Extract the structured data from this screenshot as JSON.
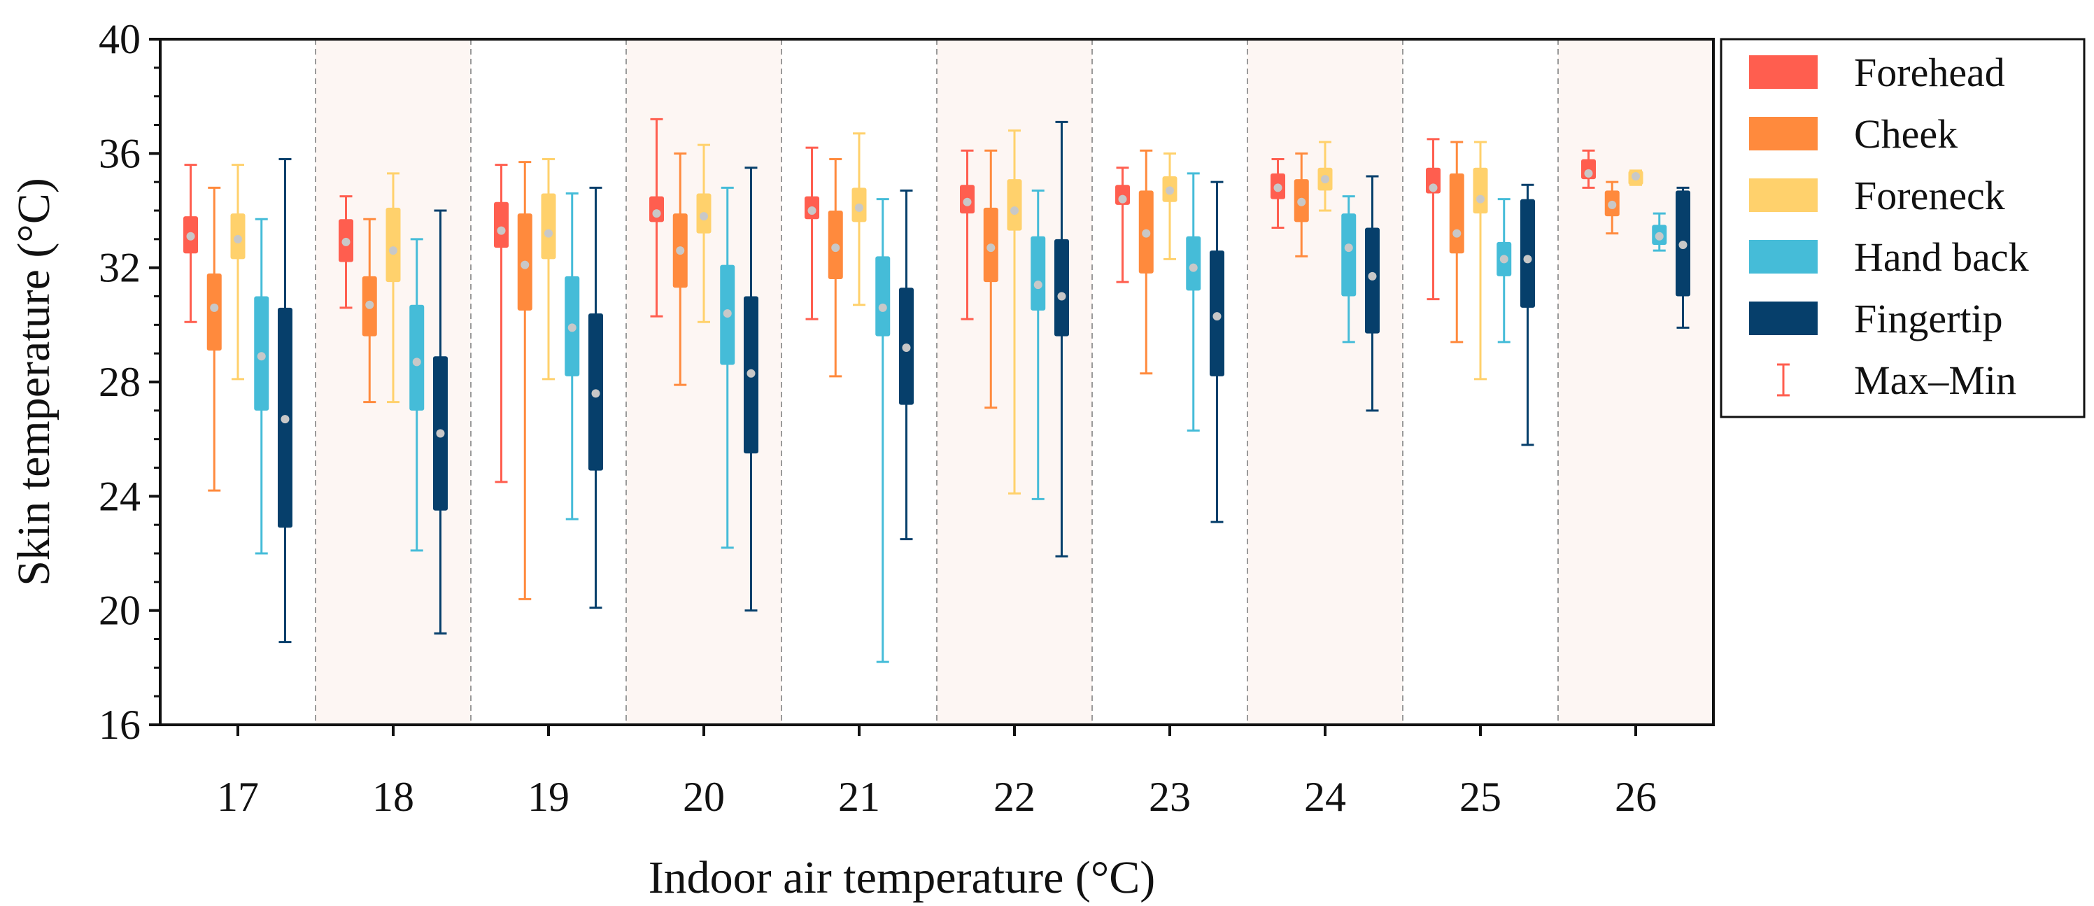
{
  "chart_data": {
    "type": "box",
    "title": "",
    "xlabel": "Indoor air temperature (°C)",
    "ylabel": "Skin temperature (°C)",
    "ylim": [
      16,
      40
    ],
    "yticks": [
      16,
      20,
      24,
      28,
      32,
      36,
      40
    ],
    "categories": [
      "17",
      "18",
      "19",
      "20",
      "21",
      "22",
      "23",
      "24",
      "25",
      "26"
    ],
    "shaded_categories": [
      "18",
      "20",
      "22",
      "24",
      "26"
    ],
    "shade_color": "#fdf6f3",
    "mean_marker_color": "#c8c8c8",
    "legend_position": "right",
    "legend_whisker_label": "Max–Min",
    "series": [
      {
        "name": "Forehead",
        "color": "#ff5e4f",
        "boxes": [
          {
            "min": 30.1,
            "q1": 32.5,
            "median": 33.2,
            "q3": 33.8,
            "max": 35.6,
            "mean": 33.1
          },
          {
            "min": 30.6,
            "q1": 32.2,
            "median": 33.0,
            "q3": 33.7,
            "max": 34.5,
            "mean": 32.9
          },
          {
            "min": 24.5,
            "q1": 32.7,
            "median": 33.4,
            "q3": 34.3,
            "max": 35.6,
            "mean": 33.3
          },
          {
            "min": 30.3,
            "q1": 33.6,
            "median": 34.0,
            "q3": 34.5,
            "max": 37.2,
            "mean": 33.9
          },
          {
            "min": 30.2,
            "q1": 33.7,
            "median": 34.1,
            "q3": 34.5,
            "max": 36.2,
            "mean": 34.0
          },
          {
            "min": 30.2,
            "q1": 33.9,
            "median": 34.4,
            "q3": 34.9,
            "max": 36.1,
            "mean": 34.3
          },
          {
            "min": 31.5,
            "q1": 34.2,
            "median": 34.5,
            "q3": 34.9,
            "max": 35.5,
            "mean": 34.4
          },
          {
            "min": 33.4,
            "q1": 34.4,
            "median": 34.8,
            "q3": 35.3,
            "max": 35.8,
            "mean": 34.8
          },
          {
            "min": 30.9,
            "q1": 34.6,
            "median": 35.0,
            "q3": 35.5,
            "max": 36.5,
            "mean": 34.8
          },
          {
            "min": 34.8,
            "q1": 35.1,
            "median": 35.4,
            "q3": 35.8,
            "max": 36.1,
            "mean": 35.3
          }
        ]
      },
      {
        "name": "Cheek",
        "color": "#ff8a3d",
        "boxes": [
          {
            "min": 24.2,
            "q1": 29.1,
            "median": 30.5,
            "q3": 31.8,
            "max": 34.8,
            "mean": 30.6
          },
          {
            "min": 27.3,
            "q1": 29.6,
            "median": 30.7,
            "q3": 31.7,
            "max": 33.7,
            "mean": 30.7
          },
          {
            "min": 20.4,
            "q1": 30.5,
            "median": 32.1,
            "q3": 33.9,
            "max": 35.7,
            "mean": 32.1
          },
          {
            "min": 27.9,
            "q1": 31.3,
            "median": 32.6,
            "q3": 33.9,
            "max": 36.0,
            "mean": 32.6
          },
          {
            "min": 28.2,
            "q1": 31.6,
            "median": 32.7,
            "q3": 34.0,
            "max": 35.8,
            "mean": 32.7
          },
          {
            "min": 27.1,
            "q1": 31.5,
            "median": 32.8,
            "q3": 34.1,
            "max": 36.1,
            "mean": 32.7
          },
          {
            "min": 28.3,
            "q1": 31.8,
            "median": 33.2,
            "q3": 34.7,
            "max": 36.1,
            "mean": 33.2
          },
          {
            "min": 32.4,
            "q1": 33.6,
            "median": 34.3,
            "q3": 35.1,
            "max": 36.0,
            "mean": 34.3
          },
          {
            "min": 29.4,
            "q1": 32.5,
            "median": 33.3,
            "q3": 35.3,
            "max": 36.4,
            "mean": 33.2
          },
          {
            "min": 33.2,
            "q1": 33.8,
            "median": 34.3,
            "q3": 34.7,
            "max": 35.0,
            "mean": 34.2
          }
        ]
      },
      {
        "name": "Foreneck",
        "color": "#ffd16c",
        "boxes": [
          {
            "min": 28.1,
            "q1": 32.3,
            "median": 33.1,
            "q3": 33.9,
            "max": 35.6,
            "mean": 33.0
          },
          {
            "min": 27.3,
            "q1": 31.5,
            "median": 32.7,
            "q3": 34.1,
            "max": 35.3,
            "mean": 32.6
          },
          {
            "min": 28.1,
            "q1": 32.3,
            "median": 33.3,
            "q3": 34.6,
            "max": 35.8,
            "mean": 33.2
          },
          {
            "min": 30.1,
            "q1": 33.2,
            "median": 33.9,
            "q3": 34.6,
            "max": 36.3,
            "mean": 33.8
          },
          {
            "min": 30.7,
            "q1": 33.6,
            "median": 34.2,
            "q3": 34.8,
            "max": 36.7,
            "mean": 34.1
          },
          {
            "min": 24.1,
            "q1": 33.3,
            "median": 34.1,
            "q3": 35.1,
            "max": 36.8,
            "mean": 34.0
          },
          {
            "min": 32.3,
            "q1": 34.3,
            "median": 34.8,
            "q3": 35.2,
            "max": 36.0,
            "mean": 34.7
          },
          {
            "min": 34.0,
            "q1": 34.7,
            "median": 35.1,
            "q3": 35.5,
            "max": 36.4,
            "mean": 35.1
          },
          {
            "min": 28.1,
            "q1": 33.9,
            "median": 34.6,
            "q3": 35.5,
            "max": 36.4,
            "mean": 34.4
          },
          {
            "min": 34.9,
            "q1": 34.9,
            "median": 35.2,
            "q3": 35.4,
            "max": 35.4,
            "mean": 35.2
          }
        ]
      },
      {
        "name": "Hand back",
        "color": "#45bcd8",
        "boxes": [
          {
            "min": 22.0,
            "q1": 27.0,
            "median": 28.9,
            "q3": 31.0,
            "max": 33.7,
            "mean": 28.9
          },
          {
            "min": 22.1,
            "q1": 27.0,
            "median": 28.7,
            "q3": 30.7,
            "max": 33.0,
            "mean": 28.7
          },
          {
            "min": 23.2,
            "q1": 28.2,
            "median": 30.0,
            "q3": 31.7,
            "max": 34.6,
            "mean": 29.9
          },
          {
            "min": 22.2,
            "q1": 28.6,
            "median": 30.5,
            "q3": 32.1,
            "max": 34.8,
            "mean": 30.4
          },
          {
            "min": 18.2,
            "q1": 29.6,
            "median": 30.6,
            "q3": 32.4,
            "max": 34.4,
            "mean": 30.6
          },
          {
            "min": 23.9,
            "q1": 30.5,
            "median": 31.3,
            "q3": 33.1,
            "max": 34.7,
            "mean": 31.4
          },
          {
            "min": 26.3,
            "q1": 31.2,
            "median": 32.0,
            "q3": 33.1,
            "max": 35.3,
            "mean": 32.0
          },
          {
            "min": 29.4,
            "q1": 31.0,
            "median": 32.7,
            "q3": 33.9,
            "max": 34.5,
            "mean": 32.7
          },
          {
            "min": 29.4,
            "q1": 31.7,
            "median": 32.4,
            "q3": 32.9,
            "max": 34.4,
            "mean": 32.3
          },
          {
            "min": 32.6,
            "q1": 32.8,
            "median": 33.1,
            "q3": 33.5,
            "max": 33.9,
            "mean": 33.1
          }
        ]
      },
      {
        "name": "Fingertip",
        "color": "#063f6b",
        "boxes": [
          {
            "min": 18.9,
            "q1": 22.9,
            "median": 26.7,
            "q3": 30.6,
            "max": 35.8,
            "mean": 26.7
          },
          {
            "min": 19.2,
            "q1": 23.5,
            "median": 26.1,
            "q3": 28.9,
            "max": 34.0,
            "mean": 26.2
          },
          {
            "min": 20.1,
            "q1": 24.9,
            "median": 27.6,
            "q3": 30.4,
            "max": 34.8,
            "mean": 27.6
          },
          {
            "min": 20.0,
            "q1": 25.5,
            "median": 28.3,
            "q3": 31.0,
            "max": 35.5,
            "mean": 28.3
          },
          {
            "min": 22.5,
            "q1": 27.2,
            "median": 29.2,
            "q3": 31.3,
            "max": 34.7,
            "mean": 29.2
          },
          {
            "min": 21.9,
            "q1": 29.6,
            "median": 31.0,
            "q3": 33.0,
            "max": 37.1,
            "mean": 31.0
          },
          {
            "min": 23.1,
            "q1": 28.2,
            "median": 30.3,
            "q3": 32.6,
            "max": 35.0,
            "mean": 30.3
          },
          {
            "min": 27.0,
            "q1": 29.7,
            "median": 31.6,
            "q3": 33.4,
            "max": 35.2,
            "mean": 31.7
          },
          {
            "min": 25.8,
            "q1": 30.6,
            "median": 32.4,
            "q3": 34.4,
            "max": 34.9,
            "mean": 32.3
          },
          {
            "min": 29.9,
            "q1": 31.0,
            "median": 32.9,
            "q3": 34.7,
            "max": 34.8,
            "mean": 32.8
          }
        ]
      }
    ]
  }
}
